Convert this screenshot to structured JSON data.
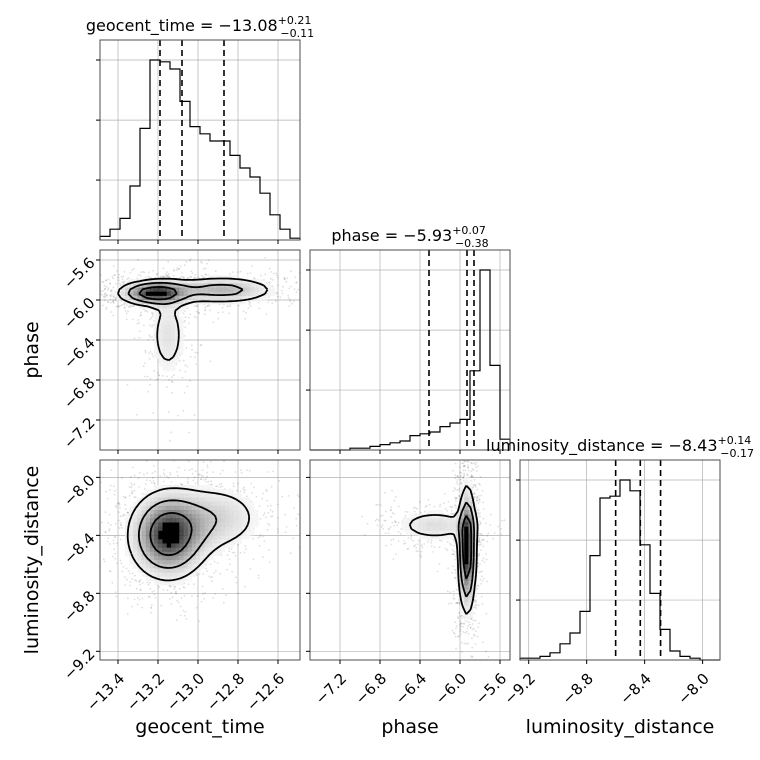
{
  "chart_data": {
    "type": "corner",
    "parameters": [
      {
        "key": "geocent_time",
        "label": "geocent_time",
        "range": [
          -13.49,
          -12.49
        ],
        "ticks": [
          -13.4,
          -13.2,
          -13.0,
          -12.8,
          -12.6
        ],
        "tick_labels": [
          "−13.4",
          "−13.2",
          "−13.0",
          "−12.8",
          "−12.6"
        ],
        "title": {
          "prefix": "geocent_time = ",
          "median": "−13.08",
          "plus": "+0.21",
          "minus": "−0.11"
        },
        "quantiles": [
          -13.19,
          -13.08,
          -12.87
        ],
        "hist_counts": [
          0.02,
          0.06,
          0.12,
          0.3,
          0.62,
          1.0,
          0.99,
          0.95,
          0.77,
          0.63,
          0.59,
          0.55,
          0.55,
          0.47,
          0.4,
          0.35,
          0.26,
          0.14,
          0.06,
          0.01
        ]
      },
      {
        "key": "phase",
        "label": "phase",
        "range": [
          -7.5,
          -5.5
        ],
        "ticks": [
          -7.2,
          -6.8,
          -6.4,
          -6.0,
          -5.6
        ],
        "tick_labels": [
          "−7.2",
          "−6.8",
          "−6.4",
          "−6.0",
          "−5.6"
        ],
        "title": {
          "prefix": "phase = ",
          "median": "−5.93",
          "plus": "+0.07",
          "minus": "−0.38"
        },
        "quantiles": [
          -6.31,
          -5.93,
          -5.86
        ],
        "hist_counts": [
          0.0,
          0.0,
          0.0,
          0.0,
          0.01,
          0.01,
          0.02,
          0.03,
          0.04,
          0.05,
          0.08,
          0.09,
          0.1,
          0.13,
          0.15,
          0.17,
          0.44,
          1.0,
          0.47,
          0.06
        ]
      },
      {
        "key": "luminosity_distance",
        "label": "luminosity_distance",
        "range": [
          -9.26,
          -7.88
        ],
        "ticks": [
          -9.2,
          -8.8,
          -8.4,
          -8.0
        ],
        "tick_labels": [
          "−9.2",
          "−8.8",
          "−8.4",
          "−8.0"
        ],
        "title": {
          "prefix": "luminosity_distance = ",
          "median": "−8.43",
          "plus": "+0.14",
          "minus": "−0.17"
        },
        "quantiles": [
          -8.6,
          -8.43,
          -8.29
        ],
        "hist_counts": [
          0.01,
          0.01,
          0.02,
          0.04,
          0.09,
          0.15,
          0.27,
          0.58,
          0.9,
          0.91,
          1.0,
          0.94,
          0.64,
          0.37,
          0.17,
          0.05,
          0.02,
          0.01,
          0.0,
          0.0
        ]
      }
    ],
    "density_peaks": {
      "geocent_time-phase": [
        {
          "x": -13.22,
          "y": -5.93,
          "sx": 0.1,
          "sy": 0.07,
          "w": 1.0
        },
        {
          "x": -12.88,
          "y": -5.9,
          "sx": 0.16,
          "sy": 0.08,
          "w": 0.55
        },
        {
          "x": -13.15,
          "y": -6.35,
          "sx": 0.06,
          "sy": 0.28,
          "w": 0.3
        }
      ],
      "geocent_time-luminosity_distance": [
        {
          "x": -13.15,
          "y": -8.4,
          "sx": 0.11,
          "sy": 0.17,
          "w": 1.0
        },
        {
          "x": -12.9,
          "y": -8.28,
          "sx": 0.14,
          "sy": 0.14,
          "w": 0.35
        }
      ],
      "phase-luminosity_distance": [
        {
          "x": -5.93,
          "y": -8.5,
          "sx": 0.05,
          "sy": 0.24,
          "w": 1.0
        },
        {
          "x": -6.25,
          "y": -8.33,
          "sx": 0.25,
          "sy": 0.07,
          "w": 0.3
        }
      ]
    },
    "grid": true,
    "diagonal_y_ticks_labeled": false
  }
}
